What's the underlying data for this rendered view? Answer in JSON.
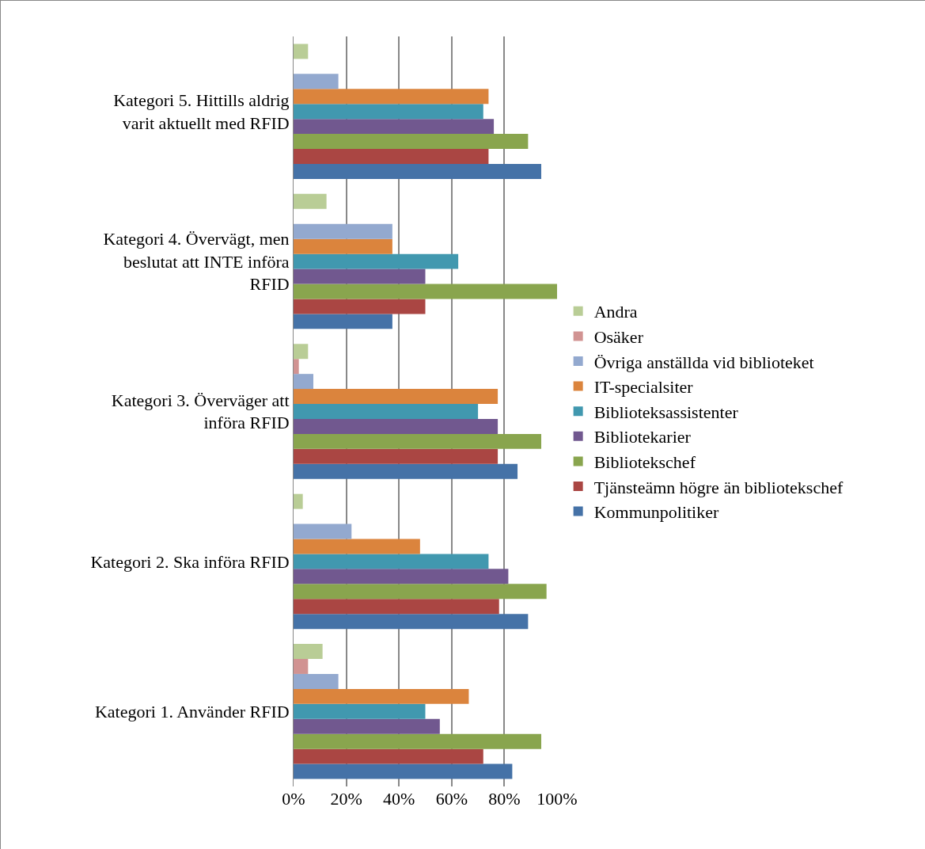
{
  "chart_data": {
    "type": "bar",
    "orientation": "horizontal",
    "categories": [
      "Kategori 5. Hittills aldrig varit aktuellt med RFID",
      "Kategori 4. Övervägt, men beslutat att INTE införa RFID",
      "Kategori 3. Överväger att införa RFID",
      "Kategori 2. Ska införa RFID",
      "Kategori 1. Använder RFID"
    ],
    "series": [
      {
        "name": "Kommunpolitiker",
        "color": "#4572a7",
        "values": [
          94,
          37.5,
          85,
          89,
          83
        ]
      },
      {
        "name": "Tjänsteämn högre än bibliotekschef",
        "color": "#aa4643",
        "values": [
          74,
          50,
          77.5,
          78,
          72
        ]
      },
      {
        "name": "Bibliotekschef",
        "color": "#89a54e",
        "values": [
          89,
          100,
          94,
          96,
          94
        ]
      },
      {
        "name": "Bibliotekarier",
        "color": "#71588f",
        "values": [
          76,
          50,
          77.5,
          81.5,
          55.5
        ]
      },
      {
        "name": "Biblioteksassistenter",
        "color": "#4198af",
        "values": [
          72,
          62.5,
          70,
          74,
          50
        ]
      },
      {
        "name": "IT-specialsiter",
        "color": "#db843d",
        "values": [
          74,
          37.5,
          77.5,
          48,
          66.5
        ]
      },
      {
        "name": "Övriga anställda vid biblioteket",
        "color": "#93a9cf",
        "values": [
          17,
          37.5,
          7.5,
          22,
          17
        ]
      },
      {
        "name": "Osäker",
        "color": "#d19392",
        "values": [
          null,
          null,
          2,
          null,
          5.5
        ]
      },
      {
        "name": "Andra",
        "color": "#b9cd96",
        "values": [
          5.5,
          12.5,
          5.5,
          3.5,
          11
        ]
      }
    ],
    "xlim": [
      0,
      100
    ],
    "xticks": [
      {
        "value": 0,
        "label": "0%"
      },
      {
        "value": 20,
        "label": "20%"
      },
      {
        "value": 40,
        "label": "40%"
      },
      {
        "value": 60,
        "label": "60%"
      },
      {
        "value": 80,
        "label": "80%"
      },
      {
        "value": 100,
        "label": "100%"
      }
    ],
    "grid": "x",
    "legend": "right"
  }
}
